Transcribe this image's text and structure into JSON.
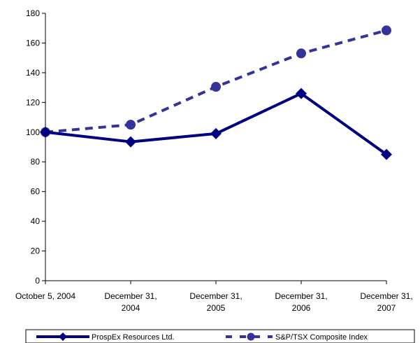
{
  "colors": {
    "primary_series": "#000080",
    "secondary_series": "#333399",
    "axis": "#000000",
    "background": "#ffffff"
  },
  "chart_data": {
    "type": "line",
    "title": "",
    "xlabel": "",
    "ylabel": "",
    "categories": [
      [
        "October 5, 2004"
      ],
      [
        "December 31,",
        "2004"
      ],
      [
        "December 31,",
        "2005"
      ],
      [
        "December 31,",
        "2006"
      ],
      [
        "December 31,",
        "2007"
      ]
    ],
    "ylim": [
      0,
      180
    ],
    "yticks": [
      "0",
      "20",
      "40",
      "60",
      "80",
      "100",
      "120",
      "140",
      "160",
      "180"
    ],
    "grid": false,
    "legend_position": "bottom",
    "series": [
      {
        "name": "ProspEx Resources Ltd.",
        "style": "solid",
        "marker": "diamond",
        "color": "#000080",
        "values": [
          100,
          93.5,
          99,
          126,
          85
        ]
      },
      {
        "name": "S&P/TSX Composite Index",
        "style": "dashed",
        "marker": "circle",
        "color": "#333399",
        "values": [
          100,
          105,
          130.5,
          153,
          168.5
        ]
      }
    ]
  }
}
